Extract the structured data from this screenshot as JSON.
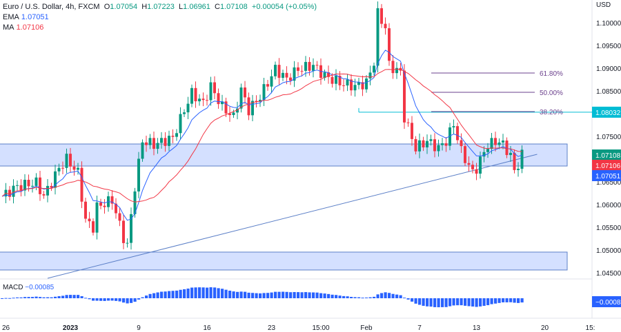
{
  "legend": {
    "symbol": "Euro / U.S. Dollar, 4h, FXCM",
    "o_label": "O",
    "o": "1.07054",
    "h_label": "H",
    "h": "1.07223",
    "l_label": "L",
    "l": "1.06961",
    "c_label": "C",
    "c": "1.07108",
    "change": "+0.00054 (+0.05%)",
    "ema_label": "EMA",
    "ema": "1.07051",
    "ma_label": "MA",
    "ma": "1.07106"
  },
  "chart_data": {
    "type": "candlestick",
    "currency": "USD",
    "ylim": [
      1.0425,
      1.1045
    ],
    "yticks": [
      "1.10000",
      "1.09500",
      "1.09000",
      "1.08500",
      "1.07500",
      "1.06500",
      "1.06000",
      "1.05500",
      "1.05000",
      "1.04500"
    ],
    "xticks": [
      {
        "label": "26",
        "bar": 1
      },
      {
        "label": "2023",
        "bar": 18,
        "bold": true
      },
      {
        "label": "9",
        "bar": 36
      },
      {
        "label": "16",
        "bar": 54
      },
      {
        "label": "23",
        "bar": 71
      },
      {
        "label": "15:00",
        "bar": 84
      },
      {
        "label": "Feb",
        "bar": 96
      },
      {
        "label": "7",
        "bar": 110
      },
      {
        "label": "13",
        "bar": 125
      },
      {
        "label": "20",
        "bar": 143
      },
      {
        "label": "15:",
        "bar": 155
      }
    ],
    "bars_total": 163,
    "waypoints": [
      [
        0,
        1.0618
      ],
      [
        4,
        1.064
      ],
      [
        9,
        1.0648
      ],
      [
        11,
        1.0618
      ],
      [
        15,
        1.068
      ],
      [
        17,
        1.07
      ],
      [
        20,
        1.067
      ],
      [
        22,
        1.0565
      ],
      [
        24,
        1.055
      ],
      [
        25,
        1.0595
      ],
      [
        29,
        1.061
      ],
      [
        32,
        1.0527
      ],
      [
        33,
        1.051
      ],
      [
        35,
        1.064
      ],
      [
        37,
        1.074
      ],
      [
        40,
        1.0732
      ],
      [
        45,
        1.0747
      ],
      [
        48,
        1.0808
      ],
      [
        50,
        1.0845
      ],
      [
        53,
        1.0823
      ],
      [
        55,
        1.086
      ],
      [
        58,
        1.0815
      ],
      [
        61,
        1.0792
      ],
      [
        63,
        1.0853
      ],
      [
        65,
        1.0808
      ],
      [
        68,
        1.0838
      ],
      [
        72,
        1.0898
      ],
      [
        75,
        1.0876
      ],
      [
        78,
        1.0898
      ],
      [
        82,
        1.0906
      ],
      [
        85,
        1.0883
      ],
      [
        89,
        1.0868
      ],
      [
        93,
        1.086
      ],
      [
        96,
        1.0868
      ],
      [
        98,
        1.0914
      ],
      [
        99,
        1.102
      ],
      [
        101,
        1.099
      ],
      [
        102,
        1.0906
      ],
      [
        105,
        1.089
      ],
      [
        106,
        1.0792
      ],
      [
        109,
        1.0724
      ],
      [
        112,
        1.074
      ],
      [
        115,
        1.0724
      ],
      [
        117,
        1.074
      ],
      [
        119,
        1.0777
      ],
      [
        121,
        1.0717
      ],
      [
        124,
        1.067
      ],
      [
        125,
        1.068
      ],
      [
        128,
        1.0732
      ],
      [
        131,
        1.074
      ],
      [
        134,
        1.071
      ],
      [
        135,
        1.067
      ],
      [
        137,
        1.0711
      ]
    ],
    "zones": [
      {
        "top": 1.07333,
        "bottom": 1.06848
      },
      {
        "top": 1.04955,
        "bottom": 1.04561
      }
    ],
    "trendline": [
      [
        12,
        1.04379
      ],
      [
        141,
        1.07106
      ]
    ],
    "fib": [
      {
        "label": "61.80%",
        "price": 1.08894
      },
      {
        "label": "50.00%",
        "price": 1.0847
      },
      {
        "label": "38.20%",
        "price": 1.08045
      }
    ],
    "hline": {
      "price": 1.08032,
      "label": "1.08032",
      "from_bar": 94
    },
    "price_tags": [
      {
        "label": "1.07108",
        "color": "#089981"
      },
      {
        "label": "1.07106",
        "color": "#f23645"
      },
      {
        "label": "1.07051",
        "color": "#2962ff"
      }
    ],
    "macd": {
      "label": "MACD",
      "value": "−0.00085"
    },
    "colors": {
      "up": "#089981",
      "down": "#f23645",
      "ema": "#2962ff",
      "ma": "#f23645",
      "zone": "#2962ff",
      "fib": "#6a3f8c",
      "hline": "#00bcd4"
    }
  }
}
